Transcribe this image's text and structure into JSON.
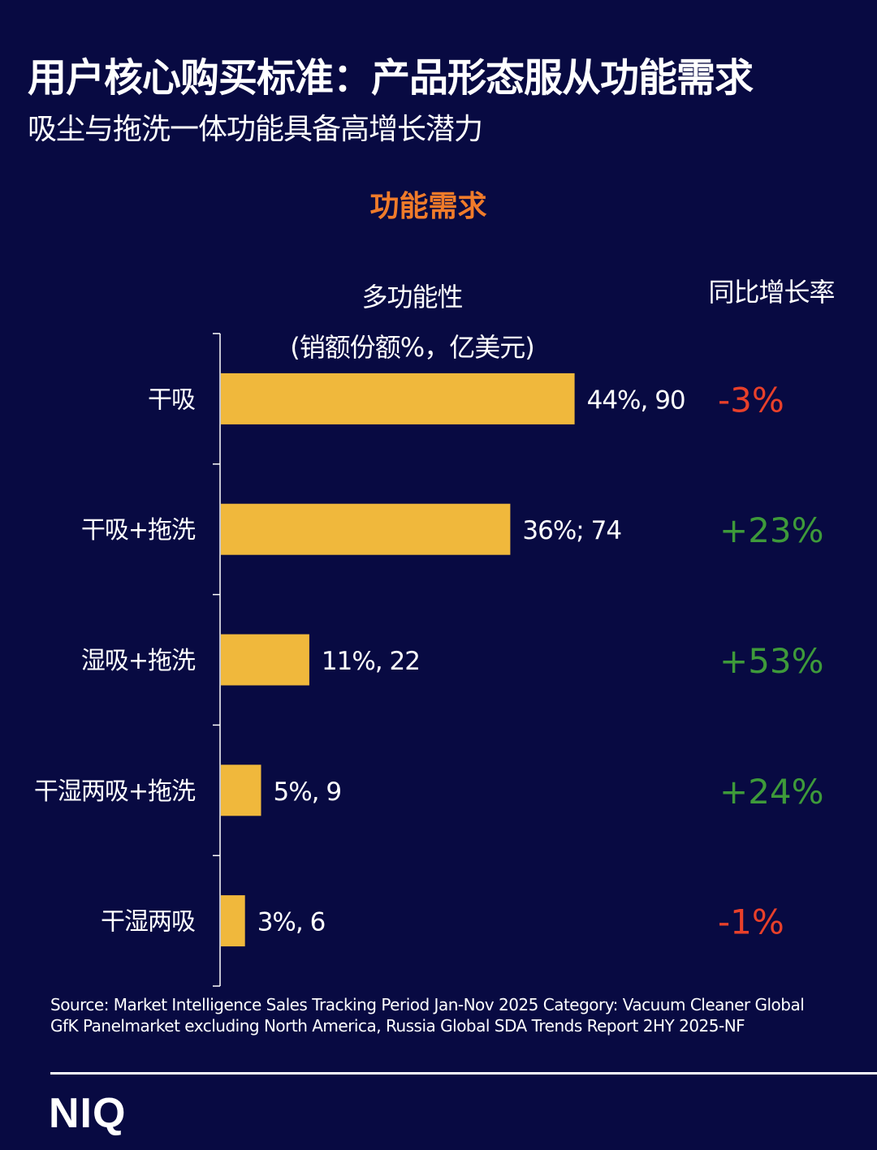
{
  "header": {
    "title": "用户核心购买标准：产品形态服从功能需求",
    "subtitle": "吸尘与拖洗一体功能具备高增长潜力",
    "section": "功能需求"
  },
  "colors": {
    "background": "#080a42",
    "bar": "#f0b83c",
    "negative": "#e8402a",
    "positive": "#3e9a3a",
    "accent": "#f07b2a"
  },
  "chart_data": {
    "type": "bar",
    "orientation": "horizontal",
    "column_headers": [
      "多功能性",
      "(销额份额%，亿美元)",
      "同比增长率"
    ],
    "categories": [
      "干吸",
      "干吸+拖洗",
      "湿吸+拖洗",
      "干湿两吸+拖洗",
      "干湿两吸"
    ],
    "share_pct": [
      44,
      36,
      11,
      5,
      3
    ],
    "sales_usd_100m": [
      90,
      74,
      22,
      9,
      6
    ],
    "data_labels": [
      "44%, 90",
      "36%; 74",
      "11%, 22",
      "5%, 9",
      "3%, 6"
    ],
    "yoy_growth": [
      "-3%",
      "+23%",
      "+53%",
      "+24%",
      "-1%"
    ],
    "yoy_growth_values": [
      -3,
      23,
      53,
      24,
      -1
    ],
    "xlim": [
      0,
      50
    ],
    "grid": false
  },
  "footer": {
    "source": "Source: Market Intelligence Sales Tracking Period Jan-Nov 2025  Category: Vacuum Cleaner Global GfK Panelmarket excluding North America, Russia Global SDA Trends Report 2HY 2025-NF",
    "logo": "NIQ"
  }
}
